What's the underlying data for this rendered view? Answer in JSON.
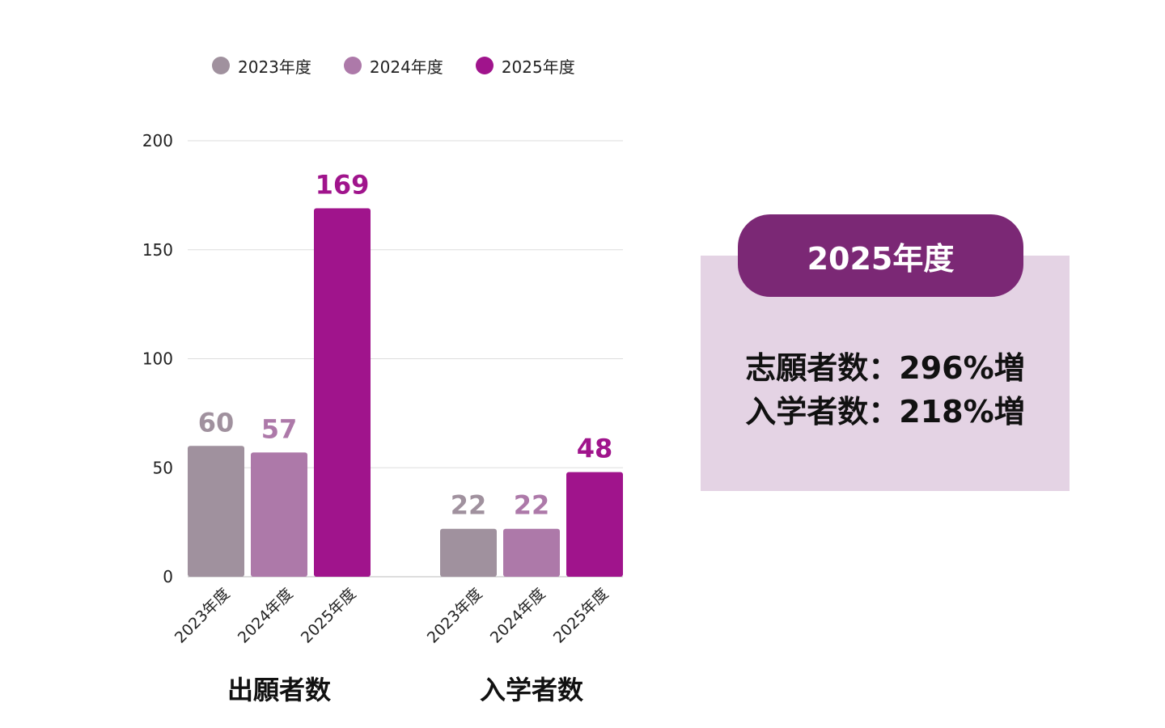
{
  "colors": {
    "y2023": "#a0919e",
    "y2024": "#ad79a9",
    "y2025": "#a0148c",
    "pill": "#7b2875",
    "panel": "#e4d3e4",
    "grid": "#dddddd",
    "text": "#222222"
  },
  "chart_data": {
    "type": "bar",
    "title": "",
    "xlabel": "",
    "ylabel": "",
    "ylim": [
      0,
      200
    ],
    "yticks": [
      "0",
      "50",
      "100",
      "150",
      "200"
    ],
    "legend": [
      "2023年度",
      "2024年度",
      "2025年度"
    ],
    "legend_position": "top-left",
    "groups": [
      {
        "name": "出願者数",
        "categories": [
          "2023年度",
          "2024年度",
          "2025年度"
        ],
        "values": [
          60,
          57,
          169
        ]
      },
      {
        "name": "入学者数",
        "categories": [
          "2023年度",
          "2024年度",
          "2025年度"
        ],
        "values": [
          22,
          22,
          48
        ]
      }
    ]
  },
  "summary": {
    "year_label": "2025年度",
    "lines": [
      "志願者数：296%増",
      "入学者数：218%増"
    ]
  }
}
